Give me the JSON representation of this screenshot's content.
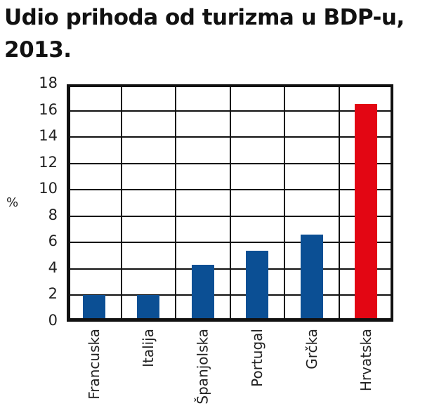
{
  "title": "Udio prihoda od turizma u BDP-u, 2013.",
  "chart_data": {
    "type": "bar",
    "title": "Udio prihoda od turizma u BDP-u, 2013.",
    "xlabel": "",
    "ylabel": "%",
    "ylim": [
      0,
      18
    ],
    "yticks": [
      0,
      2,
      4,
      6,
      8,
      10,
      12,
      14,
      16,
      18
    ],
    "ytick_labels": [
      "0",
      "2",
      "4",
      "6",
      "8",
      "10",
      "12",
      "14",
      "16",
      "18"
    ],
    "grid": true,
    "legend": null,
    "categories": [
      "Francuska",
      "Italija",
      "Španjolska",
      "Portugal",
      "Grčka",
      "Hrvatska"
    ],
    "values": [
      2.0,
      2.0,
      4.3,
      5.4,
      6.6,
      16.5
    ],
    "colors": [
      "#0B4F94",
      "#0B4F94",
      "#0B4F94",
      "#0B4F94",
      "#0B4F94",
      "#E30613"
    ],
    "highlight": "Hrvatska"
  },
  "colors": {
    "bar_default": "#0B4F94",
    "bar_highlight": "#E30613",
    "grid": "#111111"
  }
}
